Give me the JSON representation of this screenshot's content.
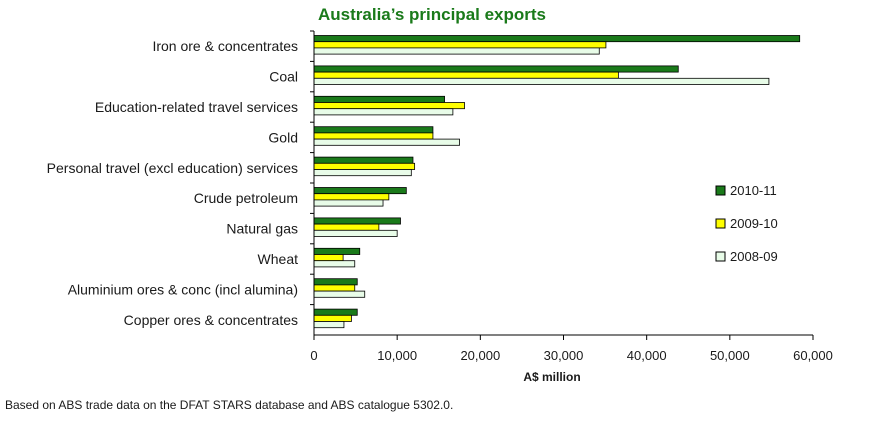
{
  "chart_data": {
    "type": "bar",
    "orientation": "horizontal",
    "title": "Australia’s principal exports",
    "xlabel": "A$ million",
    "ylabel": "",
    "xlim": [
      0,
      60000
    ],
    "xticks": [
      0,
      10000,
      20000,
      30000,
      40000,
      50000,
      60000
    ],
    "xtick_labels": [
      "0",
      "10,000",
      "20,000",
      "30,000",
      "40,000",
      "50,000",
      "60,000"
    ],
    "grid": false,
    "legend_position": "right",
    "categories": [
      "Iron ore & concentrates",
      "Coal",
      "Education-related travel services",
      "Gold",
      "Personal travel (excl education) services",
      "Crude petroleum",
      "Natural gas",
      "Wheat",
      "Aluminium ores & conc (incl alumina)",
      "Copper ores & concentrates"
    ],
    "series": [
      {
        "name": "2010-11",
        "color": "#1a7a1a",
        "values": [
          58400,
          43800,
          15700,
          14300,
          11900,
          11100,
          10400,
          5500,
          5200,
          5200
        ]
      },
      {
        "name": "2009-10",
        "color": "#ffff00",
        "values": [
          35100,
          36600,
          18100,
          14300,
          12100,
          9000,
          7800,
          3500,
          4900,
          4500
        ]
      },
      {
        "name": "2008-09",
        "color": "#e8fce8",
        "values": [
          34300,
          54700,
          16700,
          17500,
          11700,
          8300,
          10000,
          4900,
          6100,
          3600
        ]
      }
    ]
  },
  "footnote": "Based on ABS trade data on the DFAT STARS database and ABS catalogue 5302.0.",
  "colors": {
    "title": "#1a7a1a",
    "axis": "#000000",
    "bar_stroke": "#000000"
  }
}
